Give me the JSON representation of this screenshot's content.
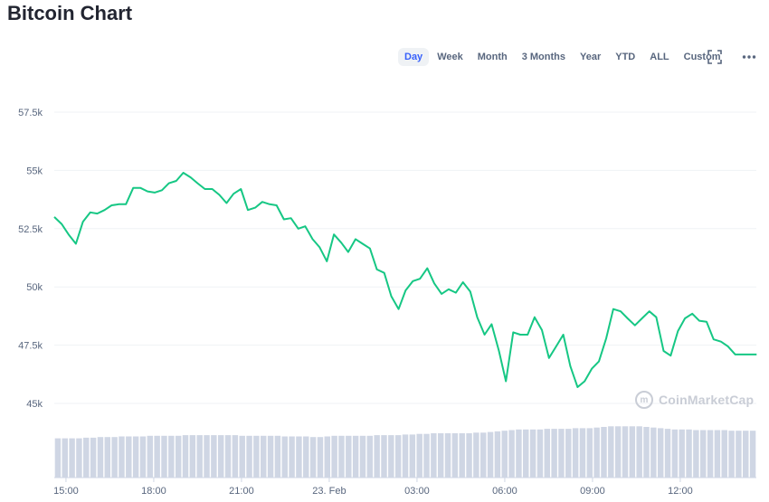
{
  "page": {
    "title": "Bitcoin Chart"
  },
  "toolbar": {
    "ranges": [
      "Day",
      "Week",
      "Month",
      "3 Months",
      "Year",
      "YTD",
      "ALL",
      "Custom"
    ],
    "active": "Day",
    "icons": [
      "fullscreen-icon",
      "more-options-icon"
    ]
  },
  "watermark": {
    "text": "CoinMarketCap",
    "icon": "coinmarketcap-logo-icon"
  },
  "colors": {
    "line": "#16c784",
    "volume": "#cfd6e4",
    "grid": "#eff2f5",
    "axis_text": "#58667e"
  },
  "chart_data": {
    "type": "line",
    "title": "",
    "xlabel": "",
    "ylabel": "",
    "ylim": [
      43500,
      58500
    ],
    "yticks": [
      45000,
      47500,
      50000,
      52500,
      55000,
      57500
    ],
    "ytick_labels": [
      "45k",
      "47.5k",
      "50k",
      "52.5k",
      "55k",
      "57.5k"
    ],
    "xlim": [
      14.6,
      38.6
    ],
    "xticks": [
      15,
      18,
      21,
      24,
      27,
      30,
      33,
      36
    ],
    "xtick_labels": [
      "15:00",
      "18:00",
      "21:00",
      "23. Feb",
      "03:00",
      "06:00",
      "09:00",
      "12:00"
    ],
    "grid": true,
    "legend": "none",
    "series": [
      {
        "values_x": [
          14.6,
          14.85,
          15.09,
          15.34,
          15.58,
          15.83,
          16.07,
          16.32,
          16.56,
          16.81,
          17.05,
          17.3,
          17.54,
          17.79,
          18.03,
          18.28,
          18.52,
          18.77,
          19.01,
          19.26,
          19.5,
          19.75,
          20.0,
          20.24,
          20.49,
          20.73,
          20.98,
          21.22,
          21.47,
          21.71,
          21.96,
          22.2,
          22.45,
          22.69,
          22.94,
          23.18,
          23.43,
          23.67,
          23.92,
          24.16,
          24.41,
          24.65,
          24.9,
          25.14,
          25.39,
          25.63,
          25.88,
          26.12,
          26.37,
          26.61,
          26.86,
          27.1,
          27.35,
          27.59,
          27.84,
          28.08,
          28.33,
          28.57,
          28.82,
          29.06,
          29.31,
          29.55,
          29.8,
          30.04,
          30.29,
          30.53,
          30.78,
          31.02,
          31.27,
          31.51,
          31.76,
          32.0,
          32.24,
          32.49,
          32.73,
          32.98,
          33.22,
          33.47,
          33.71,
          33.96,
          34.2,
          34.45,
          34.69,
          34.94,
          35.18,
          35.43,
          35.67,
          35.92,
          36.16,
          36.41,
          36.65,
          36.9,
          37.14,
          37.39,
          37.63,
          37.88,
          38.12,
          38.37,
          38.61
        ],
        "values": [
          53000,
          52700,
          52250,
          51850,
          52800,
          53200,
          53150,
          53300,
          53500,
          53550,
          53550,
          54250,
          54250,
          54100,
          54050,
          54150,
          54450,
          54550,
          54900,
          54700,
          54450,
          54200,
          54200,
          53950,
          53600,
          54000,
          54200,
          53300,
          53400,
          53650,
          53550,
          53500,
          52900,
          52950,
          52500,
          52600,
          52050,
          51700,
          51100,
          52250,
          51900,
          51500,
          52050,
          51850,
          51650,
          50750,
          50600,
          49600,
          49050,
          49850,
          50250,
          50350,
          50800,
          50150,
          49700,
          49900,
          49750,
          50200,
          49800,
          48700,
          47950,
          48400,
          47250,
          45950,
          48050,
          47950,
          47950,
          48700,
          48150,
          46950,
          47450,
          47950,
          46600,
          45700,
          45950,
          46500,
          46800,
          47800,
          49050,
          48950,
          48650,
          48350,
          48650,
          48950,
          48700,
          47250,
          47050,
          48100,
          48650,
          48850,
          48550,
          48500,
          47750,
          47650,
          47450,
          47100,
          47100,
          47100,
          47100
        ]
      }
    ],
    "volume_note": "relative volume bars",
    "volume": [
      0.62,
      0.62,
      0.62,
      0.62,
      0.63,
      0.63,
      0.64,
      0.64,
      0.64,
      0.65,
      0.65,
      0.65,
      0.65,
      0.66,
      0.66,
      0.66,
      0.66,
      0.66,
      0.67,
      0.67,
      0.67,
      0.67,
      0.67,
      0.67,
      0.67,
      0.67,
      0.66,
      0.66,
      0.66,
      0.66,
      0.66,
      0.66,
      0.65,
      0.65,
      0.65,
      0.65,
      0.64,
      0.64,
      0.65,
      0.66,
      0.66,
      0.66,
      0.66,
      0.66,
      0.66,
      0.67,
      0.67,
      0.67,
      0.67,
      0.68,
      0.68,
      0.69,
      0.69,
      0.7,
      0.7,
      0.7,
      0.7,
      0.7,
      0.7,
      0.71,
      0.71,
      0.72,
      0.73,
      0.74,
      0.75,
      0.76,
      0.76,
      0.76,
      0.76,
      0.77,
      0.77,
      0.77,
      0.77,
      0.78,
      0.78,
      0.78,
      0.79,
      0.8,
      0.81,
      0.81,
      0.81,
      0.81,
      0.81,
      0.8,
      0.79,
      0.78,
      0.77,
      0.76,
      0.76,
      0.76,
      0.75,
      0.75,
      0.75,
      0.75,
      0.75,
      0.74,
      0.74,
      0.74,
      0.74
    ]
  }
}
